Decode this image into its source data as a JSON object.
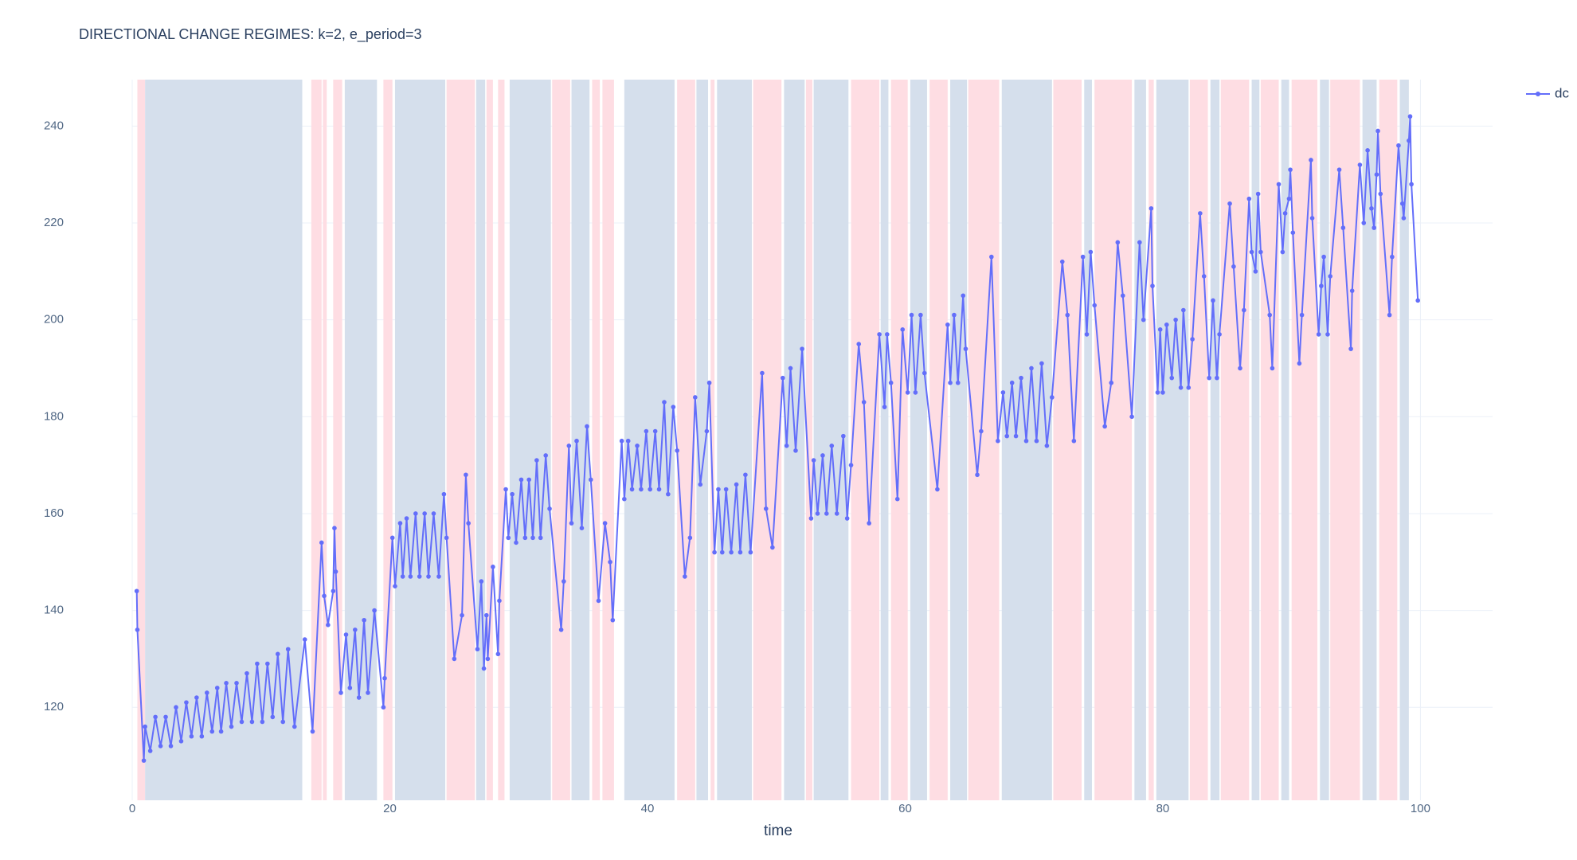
{
  "chart_data": {
    "type": "line",
    "title": "DIRECTIONAL CHANGE REGIMES: k=2, e_period=3",
    "x_label": "time",
    "xlim": [
      0,
      105.6
    ],
    "ylim": [
      100.8,
      249.6
    ],
    "xticks": [
      0,
      20,
      40,
      60,
      80,
      100
    ],
    "yticks": [
      120,
      140,
      160,
      180,
      200,
      220,
      240
    ],
    "grid": true,
    "legend": "top-right",
    "regions": [
      {
        "color": "#fedde3",
        "ranges": [
          [
            0.4,
            1.0
          ],
          [
            13.9,
            14.7
          ],
          [
            14.8,
            15.1
          ],
          [
            15.6,
            16.3
          ],
          [
            19.5,
            20.2
          ],
          [
            24.4,
            26.6
          ],
          [
            27.5,
            28.0
          ],
          [
            28.4,
            28.9
          ],
          [
            32.6,
            34.0
          ],
          [
            35.7,
            36.3
          ],
          [
            36.5,
            37.4
          ],
          [
            42.3,
            43.7
          ],
          [
            44.9,
            45.2
          ],
          [
            48.2,
            50.4
          ],
          [
            52.3,
            52.8
          ],
          [
            55.8,
            58.0
          ],
          [
            58.9,
            60.2
          ],
          [
            61.9,
            63.3
          ],
          [
            64.9,
            67.3
          ],
          [
            71.5,
            73.7
          ],
          [
            74.7,
            77.6
          ],
          [
            78.9,
            79.3
          ],
          [
            82.1,
            83.5
          ],
          [
            84.5,
            86.7
          ],
          [
            87.6,
            89.0
          ],
          [
            90.0,
            92.0
          ],
          [
            93.0,
            95.3
          ],
          [
            96.8,
            98.2
          ]
        ]
      },
      {
        "color": "#d5dfec",
        "ranges": [
          [
            1.0,
            13.2
          ],
          [
            16.5,
            19.0
          ],
          [
            20.4,
            24.3
          ],
          [
            26.7,
            27.4
          ],
          [
            29.3,
            32.5
          ],
          [
            34.1,
            35.5
          ],
          [
            38.2,
            42.1
          ],
          [
            43.8,
            44.7
          ],
          [
            45.4,
            48.1
          ],
          [
            50.6,
            52.2
          ],
          [
            52.9,
            55.6
          ],
          [
            58.1,
            58.7
          ],
          [
            60.4,
            61.7
          ],
          [
            63.5,
            64.8
          ],
          [
            67.5,
            71.4
          ],
          [
            73.9,
            74.5
          ],
          [
            77.8,
            78.7
          ],
          [
            79.5,
            82.0
          ],
          [
            83.7,
            84.4
          ],
          [
            86.9,
            87.5
          ],
          [
            89.2,
            89.8
          ],
          [
            92.2,
            92.9
          ],
          [
            95.5,
            96.6
          ],
          [
            98.4,
            99.1
          ]
        ]
      }
    ],
    "x": [
      0.35,
      0.4,
      0.9,
      1.0,
      1.4,
      1.8,
      2.2,
      2.6,
      3.0,
      3.4,
      3.8,
      4.2,
      4.6,
      5.0,
      5.4,
      5.8,
      6.2,
      6.6,
      6.9,
      7.3,
      7.7,
      8.1,
      8.5,
      8.9,
      9.3,
      9.7,
      10.1,
      10.5,
      10.9,
      11.3,
      11.7,
      12.1,
      12.6,
      13.4,
      14.0,
      14.7,
      14.9,
      15.2,
      15.6,
      15.7,
      15.8,
      16.2,
      16.6,
      16.9,
      17.3,
      17.6,
      18.0,
      18.3,
      18.8,
      19.5,
      19.6,
      20.2,
      20.4,
      20.8,
      21.0,
      21.3,
      21.6,
      22.0,
      22.3,
      22.7,
      23.0,
      23.4,
      23.8,
      24.2,
      24.4,
      25.0,
      25.6,
      25.9,
      26.1,
      26.8,
      27.1,
      27.3,
      27.5,
      27.6,
      28.0,
      28.4,
      28.5,
      29.0,
      29.2,
      29.5,
      29.8,
      30.2,
      30.5,
      30.8,
      31.1,
      31.4,
      31.7,
      32.1,
      32.4,
      33.3,
      33.5,
      33.9,
      34.1,
      34.5,
      34.9,
      35.3,
      35.6,
      36.2,
      36.7,
      37.1,
      37.3,
      38.0,
      38.2,
      38.5,
      38.8,
      39.2,
      39.5,
      39.9,
      40.2,
      40.6,
      40.9,
      41.3,
      41.6,
      42.0,
      42.3,
      42.9,
      43.3,
      43.7,
      44.1,
      44.6,
      44.8,
      45.2,
      45.5,
      45.8,
      46.1,
      46.5,
      46.9,
      47.2,
      47.6,
      48.0,
      48.9,
      49.2,
      49.7,
      50.5,
      50.8,
      51.1,
      51.5,
      52.0,
      52.7,
      52.9,
      53.2,
      53.6,
      53.9,
      54.3,
      54.7,
      55.2,
      55.5,
      55.8,
      56.4,
      56.8,
      57.2,
      58.0,
      58.4,
      58.6,
      58.9,
      59.4,
      59.8,
      60.2,
      60.5,
      60.8,
      61.2,
      61.5,
      62.5,
      63.3,
      63.5,
      63.8,
      64.1,
      64.5,
      64.7,
      65.6,
      65.9,
      66.7,
      67.2,
      67.6,
      67.9,
      68.3,
      68.6,
      69.0,
      69.4,
      69.8,
      70.2,
      70.6,
      71.0,
      71.4,
      72.2,
      72.6,
      73.1,
      73.8,
      74.1,
      74.4,
      74.7,
      75.5,
      76.0,
      76.5,
      76.9,
      77.6,
      78.2,
      78.5,
      79.1,
      79.2,
      79.6,
      79.8,
      80.0,
      80.3,
      80.7,
      81.0,
      81.4,
      81.6,
      82.0,
      82.3,
      82.9,
      83.2,
      83.6,
      83.9,
      84.2,
      84.4,
      85.2,
      85.5,
      86.0,
      86.3,
      86.7,
      86.9,
      87.2,
      87.4,
      87.6,
      88.3,
      88.5,
      89.0,
      89.3,
      89.5,
      89.8,
      89.9,
      90.1,
      90.6,
      90.8,
      91.5,
      91.6,
      92.1,
      92.3,
      92.5,
      92.8,
      93.0,
      93.7,
      94.0,
      94.6,
      94.7,
      95.3,
      95.6,
      95.9,
      96.2,
      96.4,
      96.6,
      96.7,
      96.9,
      97.6,
      97.8,
      98.3,
      98.6,
      98.7,
      99.1,
      99.2,
      99.3,
      99.8
    ],
    "series": [
      {
        "name": "dc",
        "color": "#636efa",
        "values": [
          144,
          136,
          109,
          116,
          111,
          118,
          112,
          118,
          112,
          120,
          113,
          121,
          114,
          122,
          114,
          123,
          115,
          124,
          115,
          125,
          116,
          125,
          117,
          127,
          117,
          129,
          117,
          129,
          118,
          131,
          117,
          132,
          116,
          134,
          115,
          154,
          143,
          137,
          144,
          157,
          148,
          123,
          135,
          124,
          136,
          122,
          138,
          123,
          140,
          120,
          126,
          155,
          145,
          158,
          147,
          159,
          147,
          160,
          147,
          160,
          147,
          160,
          147,
          164,
          155,
          130,
          139,
          168,
          158,
          132,
          146,
          128,
          139,
          130,
          149,
          131,
          142,
          165,
          155,
          164,
          154,
          167,
          155,
          167,
          155,
          171,
          155,
          172,
          161,
          136,
          146,
          174,
          158,
          175,
          157,
          178,
          167,
          142,
          158,
          150,
          138,
          175,
          163,
          175,
          165,
          174,
          165,
          177,
          165,
          177,
          165,
          183,
          164,
          182,
          173,
          147,
          155,
          184,
          166,
          177,
          187,
          152,
          165,
          152,
          165,
          152,
          166,
          152,
          168,
          152,
          189,
          161,
          153,
          188,
          174,
          190,
          173,
          194,
          159,
          171,
          160,
          172,
          160,
          174,
          160,
          176,
          159,
          170,
          195,
          183,
          158,
          197,
          182,
          197,
          187,
          163,
          198,
          185,
          201,
          185,
          201,
          189,
          165,
          199,
          187,
          201,
          187,
          205,
          194,
          168,
          177,
          213,
          175,
          185,
          176,
          187,
          176,
          188,
          175,
          190,
          175,
          191,
          174,
          184,
          212,
          201,
          175,
          213,
          197,
          214,
          203,
          178,
          187,
          216,
          205,
          180,
          216,
          200,
          223,
          207,
          185,
          198,
          185,
          199,
          188,
          200,
          186,
          202,
          186,
          196,
          222,
          209,
          188,
          204,
          188,
          197,
          224,
          211,
          190,
          202,
          225,
          214,
          210,
          226,
          214,
          201,
          190,
          228,
          214,
          222,
          225,
          231,
          218,
          191,
          201,
          233,
          221,
          197,
          207,
          213,
          197,
          209,
          231,
          219,
          194,
          206,
          232,
          220,
          235,
          223,
          219,
          230,
          239,
          226,
          201,
          213,
          236,
          224,
          221,
          237,
          242,
          228,
          204
        ]
      }
    ]
  }
}
